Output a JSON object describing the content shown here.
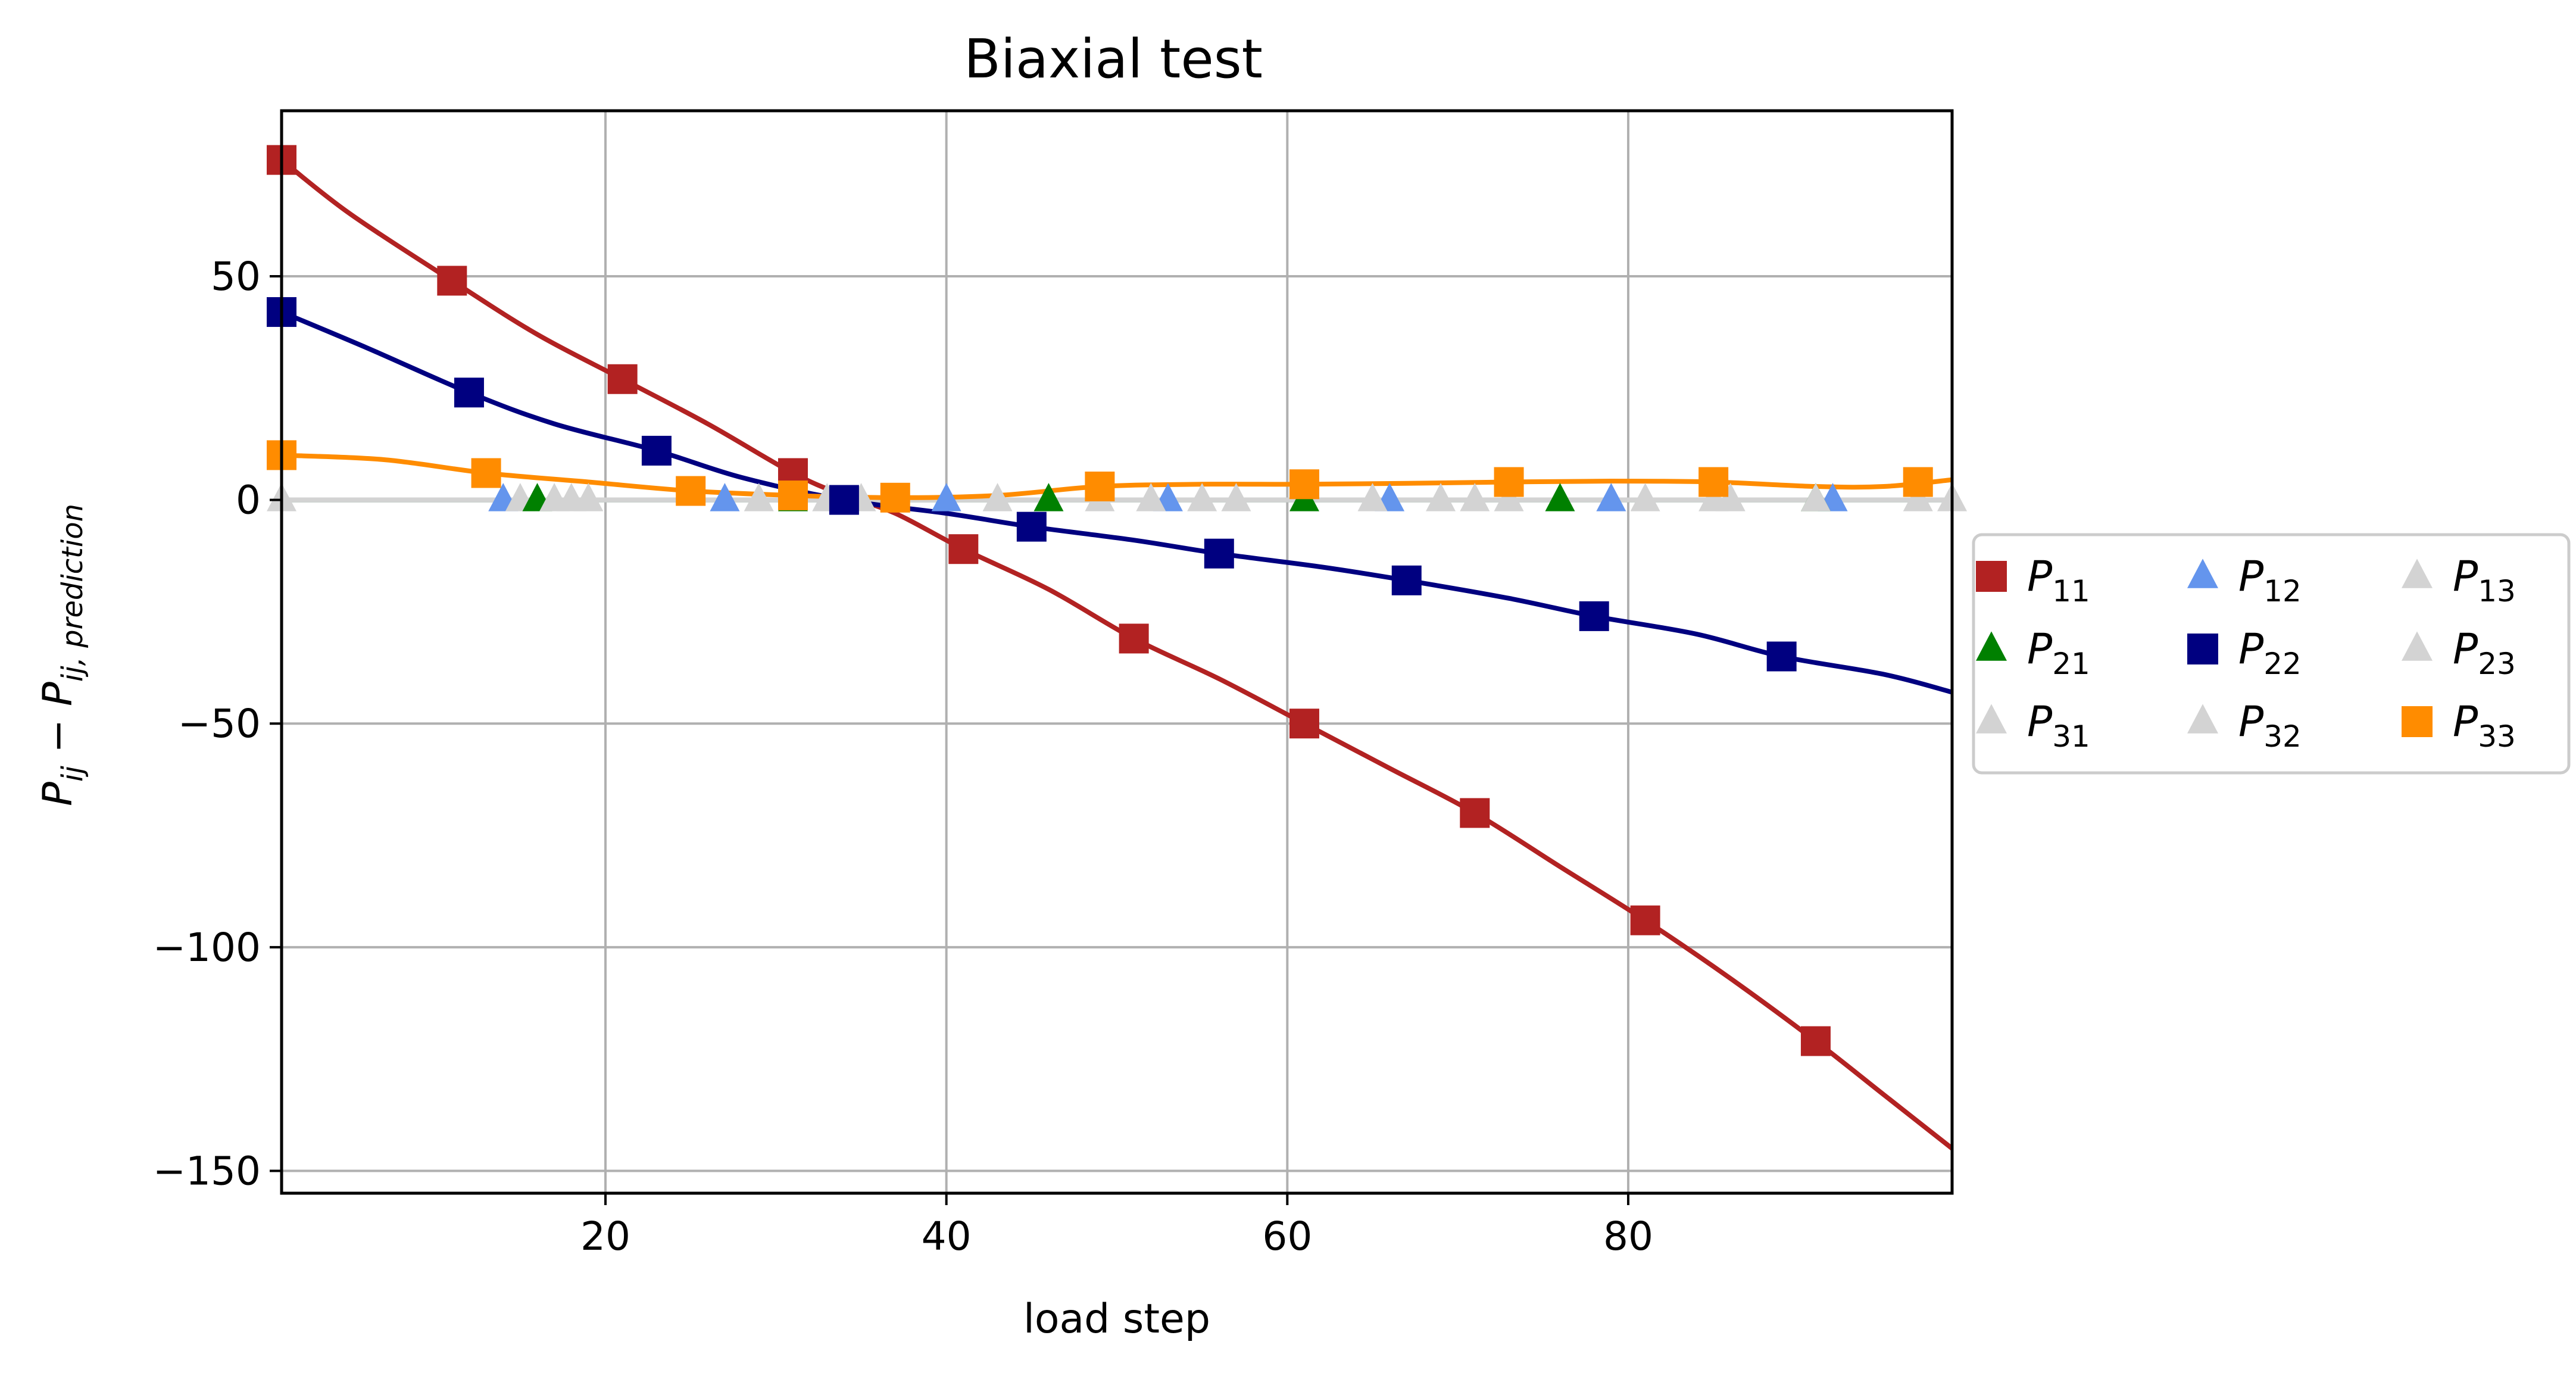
{
  "chart_data": {
    "type": "line",
    "title": "Biaxial test",
    "xlabel": "load step",
    "ylabel": "P_ij − P_ij,prediction",
    "ylabel_parts": {
      "main": "P",
      "sub1": "ij",
      "minus": " − ",
      "sub2": "ij, prediction"
    },
    "xlim": [
      1,
      99
    ],
    "ylim": [
      -155,
      87
    ],
    "xticks": [
      20,
      40,
      60,
      80
    ],
    "yticks": [
      50,
      0,
      -50,
      -100,
      -150
    ],
    "xtick_labels": [
      "20",
      "40",
      "60",
      "80"
    ],
    "ytick_labels": [
      "50",
      "0",
      "−50",
      "−100",
      "−150"
    ],
    "grid": true,
    "legend_position": "right, outside",
    "series": [
      {
        "name": "P11",
        "label_main": "P",
        "label_sub": "11",
        "color": "#b22222",
        "marker": "square",
        "line_x": [
          1,
          5,
          11,
          16,
          21,
          26,
          31,
          34,
          37,
          41,
          46,
          51,
          56,
          61,
          66,
          71,
          76,
          81,
          86,
          91,
          95,
          99
        ],
        "line_y": [
          76,
          64,
          49,
          37,
          27,
          17,
          6,
          1,
          -3,
          -11,
          -20,
          -31,
          -40,
          -50,
          -60,
          -70,
          -82,
          -94,
          -107,
          -121,
          -133,
          -145
        ],
        "marker_x": [
          1,
          11,
          21,
          31,
          41,
          51,
          61,
          71,
          81,
          91
        ],
        "marker_y": [
          76,
          49,
          27,
          6,
          -11,
          -31,
          -50,
          -70,
          -94,
          -121
        ]
      },
      {
        "name": "P12",
        "label_main": "P",
        "label_sub": "12",
        "color": "#6495ed",
        "marker": "triangle",
        "line_x": [
          1,
          99
        ],
        "line_y": [
          0,
          0
        ],
        "marker_x": [
          14,
          27,
          40,
          53,
          66,
          79,
          92
        ],
        "marker_y": [
          0,
          0,
          0,
          0,
          0,
          0,
          0
        ]
      },
      {
        "name": "P13",
        "label_main": "P",
        "label_sub": "13",
        "color": "#d3d3d3",
        "marker": "triangle",
        "line_x": [
          1,
          99
        ],
        "line_y": [
          0,
          0
        ],
        "marker_x": [
          15,
          29,
          43,
          57,
          71,
          85,
          99
        ],
        "marker_y": [
          0,
          0,
          0,
          0,
          0,
          0,
          0
        ]
      },
      {
        "name": "P21",
        "label_main": "P",
        "label_sub": "21",
        "color": "#008000",
        "marker": "triangle",
        "line_x": [
          1,
          99
        ],
        "line_y": [
          0,
          0
        ],
        "marker_x": [
          16,
          31,
          46,
          61,
          76,
          91
        ],
        "marker_y": [
          0,
          0,
          0,
          0,
          0,
          0
        ]
      },
      {
        "name": "P22",
        "label_main": "P",
        "label_sub": "22",
        "color": "#000080",
        "marker": "square",
        "line_x": [
          1,
          6,
          12,
          17,
          23,
          28,
          34,
          40,
          45,
          51,
          56,
          62,
          67,
          73,
          78,
          84,
          89,
          95,
          99
        ],
        "line_y": [
          42,
          34,
          24,
          17,
          11,
          5,
          0,
          -3,
          -6,
          -9,
          -12,
          -15,
          -18,
          -22,
          -26,
          -30,
          -35,
          -39,
          -43
        ],
        "marker_x": [
          1,
          12,
          23,
          34,
          45,
          56,
          67,
          78,
          89
        ],
        "marker_y": [
          42,
          24,
          11,
          0,
          -6,
          -12,
          -18,
          -26,
          -35
        ]
      },
      {
        "name": "P23",
        "label_main": "P",
        "label_sub": "23",
        "color": "#d3d3d3",
        "marker": "triangle",
        "line_x": [
          1,
          99
        ],
        "line_y": [
          0,
          0
        ],
        "marker_x": [
          17,
          33,
          49,
          65,
          81,
          97
        ],
        "marker_y": [
          0,
          0,
          0,
          0,
          0,
          0
        ]
      },
      {
        "name": "P31",
        "label_main": "P",
        "label_sub": "31",
        "color": "#d3d3d3",
        "marker": "triangle",
        "line_x": [
          1,
          99
        ],
        "line_y": [
          0,
          0
        ],
        "marker_x": [
          1,
          18,
          35,
          52,
          69,
          86
        ],
        "marker_y": [
          0,
          0,
          0,
          0,
          0,
          0
        ]
      },
      {
        "name": "P32",
        "label_main": "P",
        "label_sub": "32",
        "color": "#d3d3d3",
        "marker": "triangle",
        "line_x": [
          1,
          99
        ],
        "line_y": [
          0,
          0
        ],
        "marker_x": [
          19,
          37,
          55,
          73,
          91
        ],
        "marker_y": [
          0,
          0,
          0,
          0,
          0
        ]
      },
      {
        "name": "P33",
        "label_main": "P",
        "label_sub": "33",
        "color": "#ff8c00",
        "marker": "square",
        "line_x": [
          1,
          7,
          13,
          19,
          25,
          31,
          37,
          43,
          49,
          55,
          61,
          67,
          73,
          79,
          85,
          91,
          95,
          99
        ],
        "line_y": [
          10,
          9,
          6,
          4,
          2,
          1,
          0.5,
          1,
          3,
          3.5,
          3.5,
          3.7,
          4,
          4.2,
          4,
          3,
          3,
          4.5
        ],
        "marker_x": [
          1,
          13,
          25,
          31,
          37,
          49,
          61,
          73,
          85,
          97
        ],
        "marker_y": [
          10,
          6,
          2,
          1,
          0.5,
          3,
          3.5,
          4,
          4,
          4
        ]
      }
    ],
    "legend_order": [
      "P11",
      "P21",
      "P31",
      "P12",
      "P22",
      "P32",
      "P13",
      "P23",
      "P33"
    ]
  }
}
